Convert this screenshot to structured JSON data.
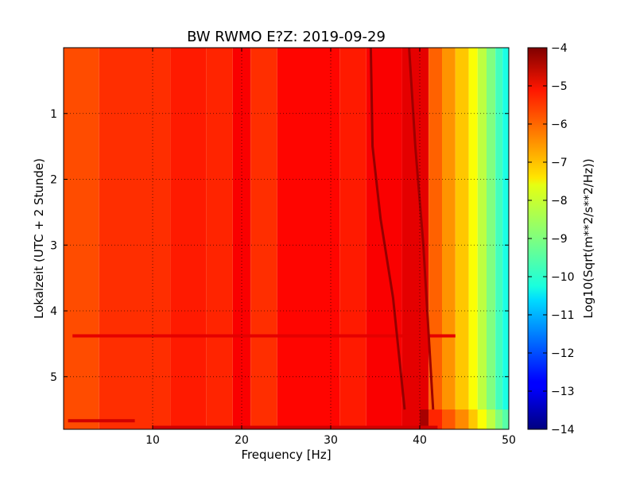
{
  "chart_data": {
    "type": "heatmap",
    "title": "BW RWMO E?Z: 2019-09-29",
    "xlabel": "Frequency [Hz]",
    "ylabel": "Lokalzeit (UTC + 2 Stunde)",
    "xlim": [
      0,
      50
    ],
    "ylim": [
      0,
      5.8
    ],
    "y_inverted": true,
    "x_ticks": [
      10,
      20,
      30,
      40,
      50
    ],
    "y_ticks": [
      1,
      2,
      3,
      4,
      5
    ],
    "grid": true,
    "colorbar": {
      "label": "Log10(Sqrt(m**2/s**2/Hz))",
      "range": [
        -14,
        -4
      ],
      "ticks": [
        -4,
        -5,
        -6,
        -7,
        -8,
        -9,
        -10,
        -11,
        -12,
        -13,
        -14
      ],
      "colormap": "jet"
    },
    "vertical_bands": [
      {
        "x": [
          0,
          4
        ],
        "value": -6.0
      },
      {
        "x": [
          4,
          12
        ],
        "value": -5.7
      },
      {
        "x": [
          12,
          16
        ],
        "value": -5.5
      },
      {
        "x": [
          16,
          19
        ],
        "value": -5.6
      },
      {
        "x": [
          19,
          21
        ],
        "value": -5.2
      },
      {
        "x": [
          21,
          24
        ],
        "value": -5.7
      },
      {
        "x": [
          24,
          31
        ],
        "value": -5.3
      },
      {
        "x": [
          31,
          34
        ],
        "value": -5.5
      },
      {
        "x": [
          34,
          38
        ],
        "value": -5.2
      },
      {
        "x": [
          38,
          41
        ],
        "value": -5.0
      },
      {
        "x": [
          41,
          42.5
        ],
        "value": -6.2
      },
      {
        "x": [
          42.5,
          44
        ],
        "value": -6.7
      },
      {
        "x": [
          44,
          45.5
        ],
        "value": -7.2
      },
      {
        "x": [
          45.5,
          46.5
        ],
        "value": -7.8
      },
      {
        "x": [
          46.5,
          47.5
        ],
        "value": -8.4
      },
      {
        "x": [
          47.5,
          48.5
        ],
        "value": -9.0
      },
      {
        "x": [
          48.5,
          49.3
        ],
        "value": -9.6
      },
      {
        "x": [
          49.3,
          50
        ],
        "value": -10.0
      }
    ],
    "horizontal_features": [
      {
        "y": 4.38,
        "x": [
          1,
          44
        ],
        "value": -5.0
      },
      {
        "y": 5.67,
        "x": [
          0.5,
          8
        ],
        "value": -4.8
      },
      {
        "y": 5.77,
        "x": [
          10,
          42
        ],
        "value": -4.8
      }
    ],
    "drifting_lines": [
      {
        "points": [
          [
            34.5,
            0
          ],
          [
            34.7,
            1.5
          ],
          [
            35.6,
            2.6
          ],
          [
            37.0,
            3.8
          ],
          [
            38.3,
            5.5
          ]
        ],
        "value": -4.2
      },
      {
        "points": [
          [
            38.8,
            0
          ],
          [
            39.5,
            1.5
          ],
          [
            40.4,
            3.0
          ],
          [
            41.5,
            5.5
          ]
        ],
        "value": -4.3
      }
    ],
    "notes": {
      "lower_band": {
        "y": [
          5.5,
          5.8
        ],
        "x": [
          40,
          50
        ],
        "value_shift": 0.6
      }
    }
  }
}
